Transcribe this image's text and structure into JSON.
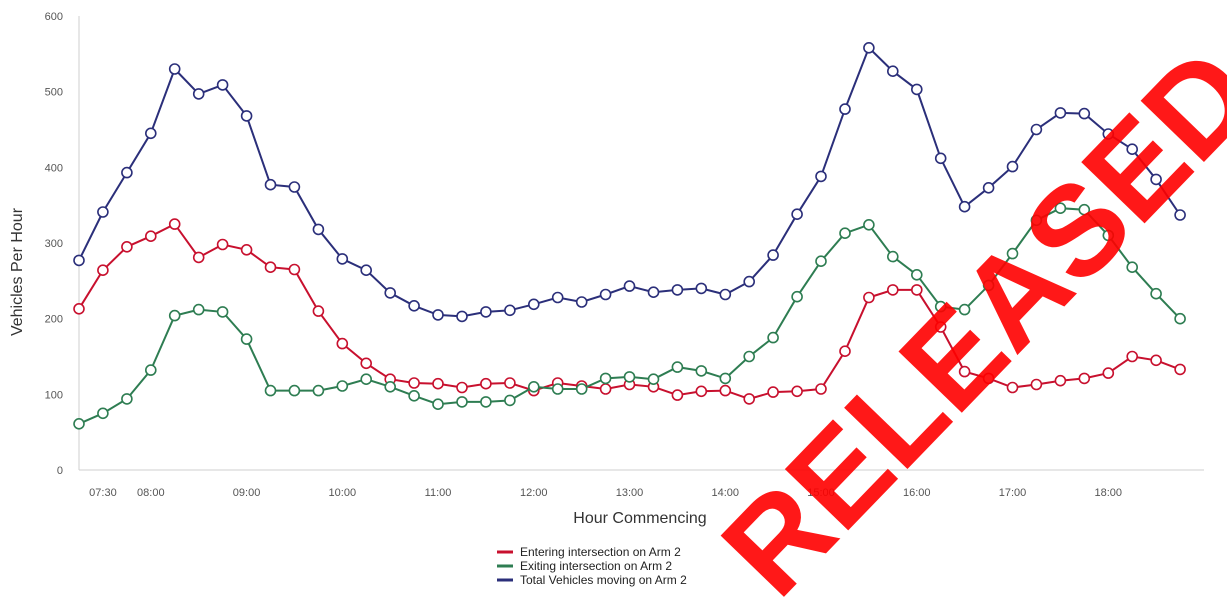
{
  "watermark": {
    "text": "RELEASED UNDER FOI ACT",
    "color": "#ff0000"
  },
  "chart_data": {
    "type": "line",
    "title": "",
    "xlabel": "Hour Commencing",
    "ylabel": "Vehicles Per Hour",
    "ylim": [
      0,
      600
    ],
    "yticks": [
      0,
      100,
      200,
      300,
      400,
      500,
      600
    ],
    "xticks": [
      "07:30",
      "08:00",
      "09:00",
      "10:00",
      "11:00",
      "12:00",
      "13:00",
      "14:00",
      "15:00",
      "16:00",
      "17:00",
      "18:00"
    ],
    "grid": false,
    "legend_position": "bottom-center",
    "x": [
      "07:15",
      "07:30",
      "07:45",
      "08:00",
      "08:15",
      "08:30",
      "08:45",
      "09:00",
      "09:15",
      "09:30",
      "09:45",
      "10:00",
      "10:15",
      "10:30",
      "10:45",
      "11:00",
      "11:15",
      "11:30",
      "11:45",
      "12:00",
      "12:15",
      "12:30",
      "12:45",
      "13:00",
      "13:15",
      "13:30",
      "13:45",
      "14:00",
      "14:15",
      "14:30",
      "14:45",
      "15:00",
      "15:15",
      "15:30",
      "15:45",
      "16:00",
      "16:15",
      "16:30",
      "16:45",
      "17:00",
      "17:15",
      "17:30",
      "17:45",
      "18:00",
      "18:15",
      "18:30",
      "18:45",
      "19:00"
    ],
    "series": [
      {
        "name": "Entering intersection on Arm 2",
        "color": "#c8102e",
        "values": [
          213,
          264,
          295,
          309,
          325,
          281,
          298,
          291,
          268,
          265,
          210,
          167,
          141,
          120,
          115,
          114,
          109,
          114,
          115,
          105,
          115,
          111,
          107,
          113,
          110,
          99,
          104,
          105,
          94,
          103,
          104,
          107,
          157,
          228,
          238,
          238,
          189,
          130,
          121,
          109,
          113,
          118,
          121,
          128,
          150,
          145,
          133,
          null
        ]
      },
      {
        "name": "Exiting intersection on Arm 2",
        "color": "#2e7d52",
        "values": [
          61,
          75,
          94,
          132,
          204,
          212,
          209,
          173,
          105,
          105,
          105,
          111,
          120,
          110,
          98,
          87,
          90,
          90,
          92,
          110,
          107,
          107,
          121,
          123,
          120,
          136,
          131,
          121,
          150,
          175,
          229,
          276,
          313,
          324,
          282,
          258,
          216,
          212,
          244,
          286,
          330,
          346,
          344,
          310,
          268,
          233,
          200,
          null
        ]
      },
      {
        "name": "Total Vehicles moving on Arm 2",
        "color": "#2b2f7a",
        "values": [
          277,
          341,
          393,
          445,
          530,
          497,
          509,
          468,
          377,
          374,
          318,
          279,
          264,
          234,
          217,
          205,
          203,
          209,
          211,
          219,
          228,
          222,
          232,
          243,
          235,
          238,
          240,
          232,
          249,
          284,
          338,
          388,
          477,
          558,
          527,
          503,
          412,
          348,
          373,
          401,
          450,
          472,
          471,
          444,
          424,
          384,
          337,
          null
        ]
      }
    ]
  }
}
